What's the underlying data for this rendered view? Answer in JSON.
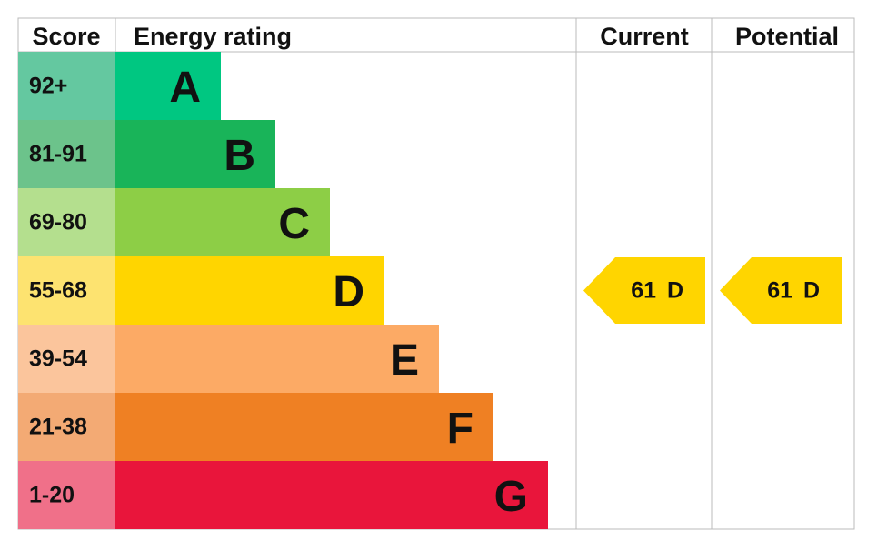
{
  "header": {
    "score": "Score",
    "rating": "Energy rating",
    "current": "Current",
    "potential": "Potential"
  },
  "bands": [
    {
      "score": "92+",
      "letter": "A",
      "color": "#00c781",
      "score_color": "#64c8a0"
    },
    {
      "score": "81-91",
      "letter": "B",
      "color": "#19b459",
      "score_color": "#6cc38b"
    },
    {
      "score": "69-80",
      "letter": "C",
      "color": "#8dce46",
      "score_color": "#b4df8e"
    },
    {
      "score": "55-68",
      "letter": "D",
      "color": "#ffd500",
      "score_color": "#fde370"
    },
    {
      "score": "39-54",
      "letter": "E",
      "color": "#fcaa65",
      "score_color": "#fbc59c"
    },
    {
      "score": "21-38",
      "letter": "F",
      "color": "#ef8023",
      "score_color": "#f3aa74"
    },
    {
      "score": "1-20",
      "letter": "G",
      "color": "#e9153b",
      "score_color": "#f07089"
    }
  ],
  "current": {
    "value": 61,
    "letter": "D"
  },
  "potential": {
    "value": 61,
    "letter": "D"
  }
}
